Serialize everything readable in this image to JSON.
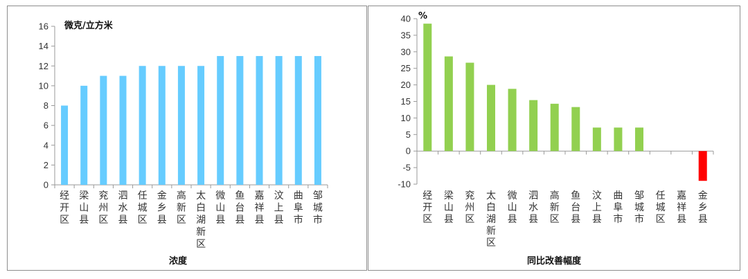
{
  "chart_data": [
    {
      "type": "bar",
      "title": "浓度",
      "xlabel": "浓度",
      "ylabel": "微克/立方米",
      "ylim": [
        0,
        16
      ],
      "yticks": [
        0,
        2,
        4,
        6,
        8,
        10,
        12,
        14,
        16
      ],
      "grid": false,
      "color": "#66ccff",
      "categories": [
        "经开区",
        "梁山县",
        "兖州区",
        "泗水县",
        "任城区",
        "金乡县",
        "高新区",
        "太白湖新区",
        "微山县",
        "鱼台县",
        "嘉祥县",
        "汶上县",
        "曲阜市",
        "邹城市"
      ],
      "values": [
        8,
        10,
        11,
        11,
        12,
        12,
        12,
        12,
        13,
        13,
        13,
        13,
        13,
        13
      ]
    },
    {
      "type": "bar",
      "title": "同比改善幅度",
      "xlabel": "同比改善幅度",
      "ylabel": "%",
      "ylim": [
        -10,
        40
      ],
      "yticks": [
        -10,
        -5,
        0,
        5,
        10,
        15,
        20,
        25,
        30,
        35,
        40
      ],
      "grid": false,
      "positive_color": "#92d050",
      "negative_color": "#ff0000",
      "categories": [
        "经开区",
        "梁山县",
        "兖州区",
        "太白湖新区",
        "微山县",
        "泗水县",
        "高新区",
        "鱼台县",
        "汶上县",
        "曲阜市",
        "邹城市",
        "任城区",
        "嘉祥县",
        "金乡县"
      ],
      "values": [
        38.5,
        28.6,
        26.7,
        20,
        18.8,
        15.4,
        14.3,
        13.3,
        7.1,
        7.1,
        7.1,
        0,
        0,
        -9
      ]
    }
  ]
}
